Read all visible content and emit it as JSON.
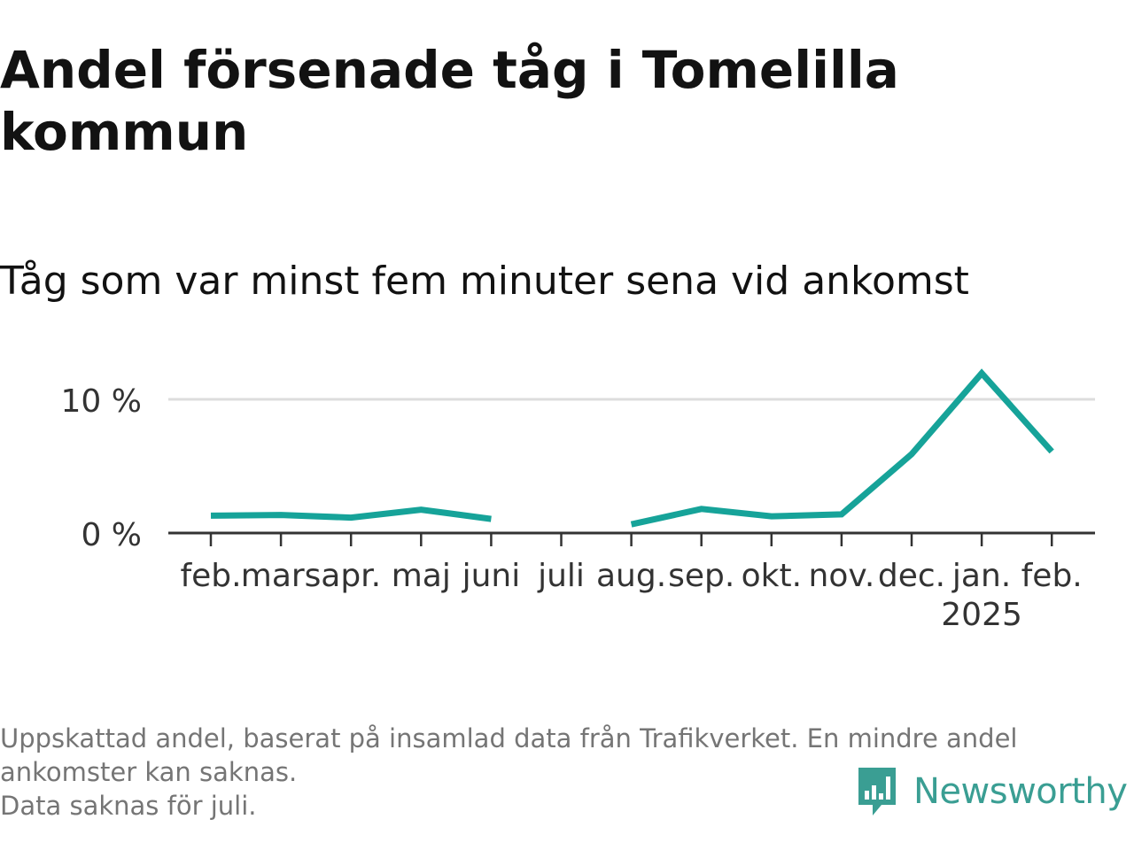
{
  "title": "Andel försenade tåg i Tomelilla kommun",
  "subtitle": "Tåg som var minst fem minuter sena vid ankomst",
  "footnote": {
    "line1": "Uppskattad andel, baserat på insamlad data från Trafikverket. En mindre andel ankomster kan saknas.",
    "line2": "Data saknas för juli."
  },
  "brand": {
    "name": "Newsworthy",
    "icon": "newsworthy-logo-icon",
    "color": "#3a9e93"
  },
  "chart_data": {
    "type": "line",
    "title": "Andel försenade tåg i Tomelilla kommun",
    "subtitle": "Tåg som var minst fem minuter sena vid ankomst",
    "categories": [
      "feb.",
      "mars",
      "apr.",
      "maj",
      "juni",
      "juli",
      "aug.",
      "sep.",
      "okt.",
      "nov.",
      "dec.",
      "jan.",
      "feb."
    ],
    "category_sublabels": [
      "",
      "",
      "",
      "",
      "",
      "",
      "",
      "",
      "",
      "",
      "",
      "2025",
      ""
    ],
    "series": [
      {
        "values": [
          1.3,
          1.35,
          1.15,
          1.75,
          1.05,
          null,
          0.65,
          1.8,
          1.25,
          1.4,
          5.9,
          11.95,
          6.1
        ],
        "color": "#16a399"
      }
    ],
    "y_ticks": [
      0,
      10
    ],
    "y_tick_labels": [
      "0 %",
      "10 %"
    ],
    "ylim": [
      0,
      13
    ],
    "grid": true,
    "grid_color": "#dddddd",
    "axis_color": "#333333",
    "legend": "none"
  }
}
